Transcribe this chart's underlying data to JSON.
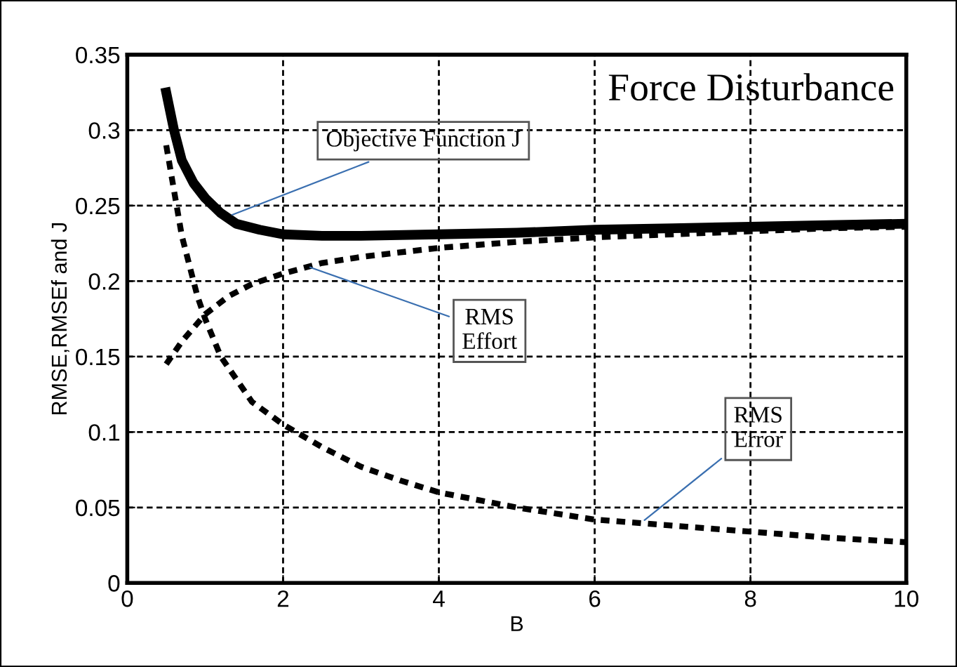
{
  "chart_data": {
    "type": "line",
    "title": "Force Disturbance",
    "xlabel": "B",
    "ylabel": "RMSE,RMSEf and J",
    "xlim": [
      0,
      10
    ],
    "ylim": [
      0,
      0.35
    ],
    "xticks": [
      0,
      2,
      4,
      6,
      8,
      10
    ],
    "yticks": [
      0,
      0.05,
      0.1,
      0.15,
      0.2,
      0.25,
      0.3,
      0.35
    ],
    "grid": true,
    "marker": "none",
    "series": [
      {
        "color": "#000000",
        "line_style": "solid",
        "x": [
          0.5,
          0.6,
          0.7,
          0.85,
          1.0,
          1.2,
          1.4,
          1.7,
          2,
          2.5,
          3,
          4,
          5,
          6,
          7,
          8,
          9,
          10
        ],
        "values": [
          0.325,
          0.3,
          0.28,
          0.265,
          0.255,
          0.245,
          0.238,
          0.234,
          0.231,
          0.23,
          0.23,
          0.231,
          0.232,
          0.234,
          0.235,
          0.236,
          0.237,
          0.238
        ]
      },
      {
        "color": "#000000",
        "line_style": "dotted",
        "x": [
          0.5,
          0.7,
          1.0,
          1.3,
          1.6,
          2,
          2.5,
          3,
          4,
          5,
          6,
          7,
          8,
          9,
          10
        ],
        "values": [
          0.145,
          0.16,
          0.178,
          0.19,
          0.198,
          0.205,
          0.212,
          0.216,
          0.222,
          0.226,
          0.229,
          0.231,
          0.233,
          0.235,
          0.236
        ]
      },
      {
        "color": "#000000",
        "line_style": "dotted",
        "x": [
          0.5,
          0.7,
          0.9,
          1.0,
          1.2,
          1.4,
          1.6,
          2,
          2.5,
          3,
          3.5,
          4,
          5,
          6,
          7,
          8,
          9,
          10
        ],
        "values": [
          0.29,
          0.23,
          0.19,
          0.175,
          0.15,
          0.135,
          0.12,
          0.105,
          0.09,
          0.077,
          0.068,
          0.06,
          0.05,
          0.042,
          0.038,
          0.034,
          0.03,
          0.027
        ]
      }
    ],
    "annotations": [
      {
        "text": "Objective Function J",
        "x": 1.3,
        "y": 0.243
      },
      {
        "text": "RMS\nEffort",
        "x": 2.3,
        "y": 0.21
      },
      {
        "text": "RMS\nError",
        "x": 6.6,
        "y": 0.04
      }
    ]
  }
}
